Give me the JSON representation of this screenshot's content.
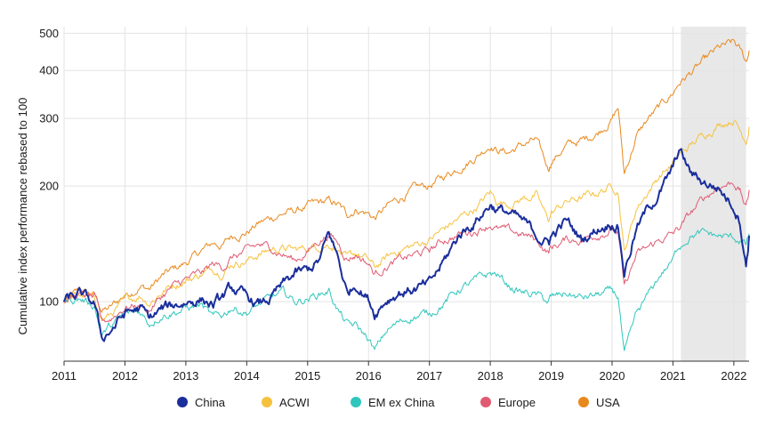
{
  "chart_data": {
    "type": "line",
    "title": "",
    "xlabel": "",
    "ylabel": "Cumulative index performance rebased to 100",
    "yscale": "log",
    "ylim": [
      70,
      520
    ],
    "xlim": [
      2011.0,
      2022.25
    ],
    "y_ticks": [
      100,
      200,
      300,
      400,
      500
    ],
    "x_ticks": [
      2011,
      2012,
      2013,
      2014,
      2015,
      2016,
      2017,
      2018,
      2019,
      2020,
      2021,
      2022
    ],
    "grid": true,
    "legend_position": "bottom",
    "highlight_region": {
      "x_start": 2021.13,
      "x_end": 2022.2,
      "color": "#e8e8e8"
    },
    "x": [
      2011.0,
      2011.25,
      2011.5,
      2011.62,
      2011.75,
      2012.0,
      2012.25,
      2012.4,
      2012.6,
      2012.75,
      2013.0,
      2013.25,
      2013.45,
      2013.6,
      2013.75,
      2014.0,
      2014.2,
      2014.4,
      2014.6,
      2014.8,
      2015.0,
      2015.2,
      2015.35,
      2015.5,
      2015.65,
      2015.8,
      2016.0,
      2016.1,
      2016.3,
      2016.5,
      2016.75,
      2017.0,
      2017.25,
      2017.5,
      2017.75,
      2018.0,
      2018.1,
      2018.3,
      2018.5,
      2018.75,
      2018.95,
      2019.0,
      2019.25,
      2019.5,
      2019.75,
      2020.0,
      2020.1,
      2020.2,
      2020.4,
      2020.6,
      2020.8,
      2021.0,
      2021.1,
      2021.3,
      2021.5,
      2021.75,
      2022.0,
      2022.1,
      2022.2,
      2022.25
    ],
    "series": [
      {
        "name": "USA",
        "color": "#e8891c",
        "width": 1,
        "values": [
          100,
          106,
          104,
          95,
          96,
          104,
          110,
          108,
          116,
          120,
          126,
          135,
          142,
          140,
          148,
          152,
          160,
          165,
          170,
          172,
          177,
          180,
          182,
          178,
          168,
          175,
          170,
          165,
          176,
          185,
          196,
          200,
          212,
          225,
          238,
          258,
          250,
          245,
          255,
          263,
          220,
          232,
          255,
          262,
          275,
          300,
          320,
          215,
          270,
          300,
          322,
          350,
          372,
          395,
          420,
          455,
          470,
          450,
          420,
          450
        ]
      },
      {
        "name": "ACWI",
        "color": "#f6c13e",
        "width": 1,
        "values": [
          100,
          104,
          101,
          90,
          92,
          100,
          104,
          100,
          106,
          110,
          114,
          118,
          122,
          120,
          126,
          128,
          133,
          137,
          138,
          136,
          138,
          140,
          142,
          138,
          128,
          133,
          128,
          122,
          130,
          136,
          140,
          145,
          155,
          165,
          175,
          192,
          183,
          180,
          185,
          190,
          162,
          170,
          182,
          186,
          192,
          200,
          196,
          135,
          175,
          195,
          215,
          228,
          240,
          255,
          272,
          290,
          300,
          280,
          265,
          285
        ]
      },
      {
        "name": "Europe",
        "color": "#e05a72",
        "width": 1,
        "values": [
          100,
          104,
          102,
          88,
          90,
          97,
          98,
          95,
          103,
          108,
          114,
          118,
          125,
          123,
          130,
          135,
          140,
          138,
          133,
          128,
          135,
          145,
          150,
          142,
          130,
          133,
          126,
          118,
          124,
          128,
          132,
          136,
          145,
          150,
          153,
          160,
          155,
          152,
          150,
          145,
          135,
          138,
          145,
          145,
          150,
          155,
          150,
          108,
          132,
          138,
          145,
          150,
          155,
          170,
          185,
          200,
          205,
          195,
          175,
          195
        ]
      },
      {
        "name": "EM ex China",
        "color": "#2fc6bc",
        "width": 1,
        "values": [
          100,
          102,
          98,
          82,
          86,
          92,
          94,
          88,
          93,
          94,
          96,
          98,
          90,
          92,
          97,
          94,
          98,
          102,
          105,
          100,
          102,
          105,
          107,
          95,
          87,
          86,
          80,
          74,
          84,
          88,
          92,
          93,
          100,
          108,
          113,
          118,
          118,
          110,
          106,
          104,
          100,
          102,
          105,
          102,
          104,
          106,
          103,
          72,
          92,
          104,
          118,
          128,
          140,
          150,
          150,
          148,
          146,
          145,
          140,
          150
        ]
      },
      {
        "name": "China",
        "color": "#1a2e9c",
        "width": 2,
        "values": [
          100,
          104,
          98,
          80,
          84,
          93,
          96,
          90,
          95,
          97,
          100,
          102,
          98,
          102,
          108,
          102,
          98,
          102,
          110,
          118,
          120,
          128,
          150,
          130,
          105,
          112,
          102,
          94,
          102,
          106,
          108,
          110,
          128,
          150,
          162,
          180,
          175,
          170,
          162,
          150,
          142,
          148,
          162,
          145,
          155,
          162,
          158,
          120,
          155,
          175,
          195,
          220,
          248,
          215,
          205,
          198,
          178,
          165,
          125,
          148
        ]
      }
    ]
  }
}
